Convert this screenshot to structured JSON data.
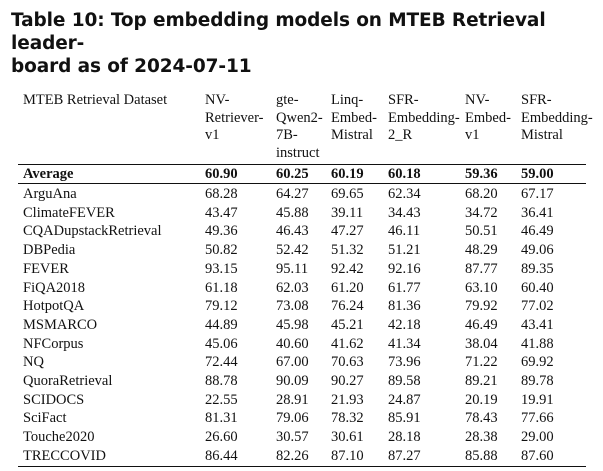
{
  "caption": {
    "line1": "Table 10: Top embedding models on MTEB Retrieval leader-",
    "line2": "board as of 2024-07-11"
  },
  "table": {
    "headers": [
      [
        "MTEB Retrieval Dataset"
      ],
      [
        "NV-",
        "Retriever-",
        "v1"
      ],
      [
        "gte-",
        "Qwen2-",
        "7B-",
        "instruct"
      ],
      [
        "Linq-",
        "Embed-",
        "Mistral"
      ],
      [
        "SFR-",
        "Embedding-",
        "2_R"
      ],
      [
        "NV-",
        "Embed-",
        "v1"
      ],
      [
        "SFR-",
        "Embedding-",
        "Mistral"
      ]
    ],
    "average": [
      "Average",
      "60.90",
      "60.25",
      "60.19",
      "60.18",
      "59.36",
      "59.00"
    ],
    "rows": [
      [
        "ArguAna",
        "68.28",
        "64.27",
        "69.65",
        "62.34",
        "68.20",
        "67.17"
      ],
      [
        "ClimateFEVER",
        "43.47",
        "45.88",
        "39.11",
        "34.43",
        "34.72",
        "36.41"
      ],
      [
        "CQADupstackRetrieval",
        "49.36",
        "46.43",
        "47.27",
        "46.11",
        "50.51",
        "46.49"
      ],
      [
        "DBPedia",
        "50.82",
        "52.42",
        "51.32",
        "51.21",
        "48.29",
        "49.06"
      ],
      [
        "FEVER",
        "93.15",
        "95.11",
        "92.42",
        "92.16",
        "87.77",
        "89.35"
      ],
      [
        "FiQA2018",
        "61.18",
        "62.03",
        "61.20",
        "61.77",
        "63.10",
        "60.40"
      ],
      [
        "HotpotQA",
        "79.12",
        "73.08",
        "76.24",
        "81.36",
        "79.92",
        "77.02"
      ],
      [
        "MSMARCO",
        "44.89",
        "45.98",
        "45.21",
        "42.18",
        "46.49",
        "43.41"
      ],
      [
        "NFCorpus",
        "45.06",
        "40.60",
        "41.62",
        "41.34",
        "38.04",
        "41.88"
      ],
      [
        "NQ",
        "72.44",
        "67.00",
        "70.63",
        "73.96",
        "71.22",
        "69.92"
      ],
      [
        "QuoraRetrieval",
        "88.78",
        "90.09",
        "90.27",
        "89.58",
        "89.21",
        "89.78"
      ],
      [
        "SCIDOCS",
        "22.55",
        "28.91",
        "21.93",
        "24.87",
        "20.19",
        "19.91"
      ],
      [
        "SciFact",
        "81.31",
        "79.06",
        "78.32",
        "85.91",
        "78.43",
        "77.66"
      ],
      [
        "Touche2020",
        "26.60",
        "30.57",
        "30.61",
        "28.18",
        "28.38",
        "29.00"
      ],
      [
        "TRECCOVID",
        "86.44",
        "82.26",
        "87.10",
        "87.27",
        "85.88",
        "87.60"
      ]
    ]
  }
}
